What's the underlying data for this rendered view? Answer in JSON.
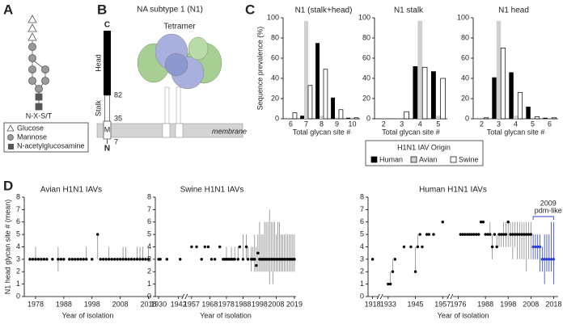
{
  "diagram": {
    "panel_labels": [
      "A",
      "B",
      "C",
      "D"
    ],
    "glycan": {
      "motif": "N-X-S/T",
      "legend": [
        "Glucose",
        "Mannose",
        "N-acetylglucosamine"
      ]
    },
    "protein": {
      "title": "NA subtype 1 (N1)",
      "c_term": "C",
      "head": "Head",
      "pos_82": "82",
      "stalk": "Stalk",
      "pos_35": "35",
      "tm": "M",
      "pos_7": "7",
      "n_term": "N",
      "tetramer": "Tetramer",
      "membrane": "membrane"
    }
  },
  "chart_data": [
    {
      "type": "bar",
      "title": "N1 (stalk+head)",
      "y_label": "Sequence prevalence (%)",
      "x_label": "Total glycan site #",
      "legend_title": "H1N1 IAV Origin",
      "categories": [
        6,
        7,
        8,
        9,
        10
      ],
      "ylim": [
        0,
        100
      ],
      "yticks": [
        0,
        20,
        40,
        60,
        80,
        100
      ],
      "series": [
        {
          "name": "Human",
          "color": "#000000",
          "values": [
            0,
            3,
            75,
            21,
            1
          ]
        },
        {
          "name": "Avian",
          "color": "#d0d0d0",
          "values": [
            0,
            97,
            3,
            0,
            0
          ]
        },
        {
          "name": "Swine",
          "color": "#ffffff",
          "edgecolor": "#000000",
          "values": [
            6,
            33,
            49,
            9,
            1
          ]
        }
      ]
    },
    {
      "type": "bar",
      "title": "N1 stalk",
      "x_label": "Total glycan site #",
      "categories": [
        2,
        3,
        4,
        5
      ],
      "ylim": [
        0,
        100
      ],
      "yticks": [
        0,
        20,
        40,
        60,
        80,
        100
      ],
      "series": [
        {
          "color": "#000000",
          "values": [
            0,
            0,
            52,
            47
          ]
        },
        {
          "color": "#d0d0d0",
          "values": [
            0,
            0,
            97,
            3
          ]
        },
        {
          "color": "#ffffff",
          "edgecolor": "#000000",
          "values": [
            0,
            7,
            51,
            40
          ]
        }
      ]
    },
    {
      "type": "bar",
      "title": "N1 head",
      "x_label": "Total glycan site #",
      "categories": [
        2,
        3,
        4,
        5,
        6
      ],
      "ylim": [
        0,
        100
      ],
      "yticks": [
        0,
        20,
        40,
        60,
        80,
        100
      ],
      "series": [
        {
          "color": "#000000",
          "values": [
            0,
            41,
            46,
            12,
            1
          ]
        },
        {
          "color": "#d0d0d0",
          "values": [
            0,
            97,
            3,
            0,
            0
          ]
        },
        {
          "color": "#ffffff",
          "edgecolor": "#000000",
          "values": [
            1,
            70,
            26,
            2,
            1
          ]
        }
      ]
    },
    {
      "type": "dotrange",
      "title": "Avian H1N1 IAVs",
      "y_label": "N1 head glycan site # (mean)",
      "x_label": "Year of isolation",
      "xlim": [
        1974,
        2019
      ],
      "xticks": [
        1978,
        1988,
        1998,
        2008,
        2018
      ],
      "ylim": [
        0,
        8
      ],
      "yticks": [
        0,
        1,
        2,
        3,
        4,
        5,
        6,
        7,
        8
      ],
      "series": [
        {
          "color": "#000000",
          "x": [
            1976,
            1977,
            1978,
            1979,
            1980,
            1981,
            1982,
            1984,
            1986,
            1987,
            1988,
            1990,
            1991,
            1992,
            1993,
            1994,
            1995,
            1996,
            1998,
            2000,
            2001,
            2002,
            2003,
            2004,
            2005,
            2006,
            2007,
            2008,
            2009,
            2010,
            2011,
            2012,
            2013,
            2014,
            2015,
            2016,
            2017,
            2018
          ],
          "values": [
            3,
            3,
            3,
            3,
            3,
            3,
            3,
            3,
            3,
            3,
            3,
            3,
            3,
            3,
            3,
            3,
            3,
            3,
            3,
            5,
            3,
            3,
            3,
            3,
            3,
            3,
            3,
            3,
            3,
            3,
            3,
            3,
            3,
            3,
            3,
            3,
            3,
            3
          ],
          "lo": [
            3,
            3,
            3,
            3,
            3,
            3,
            3,
            3,
            2,
            3,
            3,
            3,
            3,
            3,
            3,
            3,
            3,
            3,
            3,
            3,
            3,
            3,
            3,
            3,
            3,
            3,
            3,
            3,
            3,
            3,
            3,
            3,
            3,
            3,
            3,
            3,
            3,
            3
          ],
          "hi": [
            3,
            3,
            4,
            3,
            3,
            3,
            3,
            3,
            4,
            3,
            3,
            3,
            3,
            3,
            3,
            3,
            3,
            4,
            3,
            5,
            3,
            3,
            3,
            4,
            3,
            3,
            3,
            3,
            4,
            4,
            3,
            3,
            3,
            4,
            4,
            4,
            3,
            4
          ]
        }
      ]
    },
    {
      "type": "dotrange",
      "title": "Swine H1N1 IAVs",
      "x_label": "Year of isolation",
      "xlim": [
        1928,
        2020
      ],
      "xbreaks": [
        [
          1944,
          1955
        ]
      ],
      "xticks": [
        1930,
        1942,
        1957,
        1968,
        1978,
        1988,
        1998,
        2008,
        2019
      ],
      "ylim": [
        0,
        8
      ],
      "yticks": [
        0,
        1,
        2,
        3,
        4,
        5,
        6,
        7,
        8
      ],
      "series": [
        {
          "color": "#000000",
          "x": [
            1930,
            1931,
            1935,
            1943,
            1957,
            1960,
            1963,
            1965,
            1967,
            1969,
            1971,
            1974,
            1976,
            1977,
            1978,
            1979,
            1980,
            1981,
            1982,
            1983,
            1985,
            1986,
            1988,
            1990,
            1991,
            1993,
            1994,
            1995,
            1996,
            1997,
            1998,
            1999,
            2000,
            2001,
            2002,
            2003,
            2004,
            2005,
            2006,
            2007,
            2008,
            2009,
            2010,
            2011,
            2012,
            2013,
            2014,
            2015,
            2016,
            2017,
            2018,
            2019
          ],
          "values": [
            3,
            3,
            3,
            3,
            4,
            4,
            3,
            4,
            4,
            3,
            3,
            4,
            3,
            3,
            3,
            3,
            3,
            3,
            3,
            3,
            3,
            4,
            3,
            4,
            3,
            3,
            3,
            3,
            2.5,
            3.5,
            3,
            3,
            3,
            3,
            3,
            3,
            3,
            3,
            3,
            3,
            3,
            3,
            3,
            3,
            3,
            3,
            3,
            3,
            3,
            3,
            3,
            3
          ],
          "lo": [
            3,
            3,
            3,
            3,
            4,
            4,
            3,
            4,
            4,
            3,
            3,
            4,
            3,
            3,
            3,
            3,
            3,
            3,
            3,
            3,
            3,
            4,
            3,
            3,
            3,
            2,
            3,
            2,
            2,
            2,
            2,
            2,
            2,
            2,
            2,
            2,
            1,
            2,
            1,
            2,
            2,
            2,
            2,
            2,
            2,
            2,
            2,
            2,
            2,
            2,
            2,
            2
          ],
          "hi": [
            3,
            3,
            3,
            3,
            4,
            4,
            3,
            4,
            4,
            3,
            3,
            4,
            3,
            3,
            4,
            3,
            3,
            4,
            3,
            4,
            4,
            4,
            5,
            5,
            4,
            4,
            4,
            5,
            4,
            5,
            6,
            5,
            5,
            6,
            6,
            6,
            7,
            6,
            6,
            6,
            5,
            6,
            6,
            5,
            5,
            5,
            5,
            5,
            5,
            5,
            5,
            5
          ]
        }
      ]
    },
    {
      "type": "dotrange",
      "title": "Human H1N1 IAVs",
      "x_label": "Year of isolation",
      "annotation": [
        "2009",
        "pdm-like"
      ],
      "xlim": [
        1916,
        2020
      ],
      "xbreaks": [
        [
          1920,
          1931
        ],
        [
          1959,
          1974
        ]
      ],
      "xticks": [
        1918,
        1933,
        1945,
        1957,
        1976,
        1988,
        1998,
        2008,
        2018
      ],
      "ylim": [
        0,
        8
      ],
      "yticks": [
        0,
        1,
        2,
        3,
        4,
        5,
        6,
        7,
        8
      ],
      "series": [
        {
          "color": "#000000",
          "x": [
            1918,
            1933,
            1934,
            1935,
            1936,
            1940,
            1943,
            1945,
            1946,
            1947,
            1948,
            1950,
            1951,
            1953,
            1957,
            1977,
            1978,
            1979,
            1980,
            1981,
            1982,
            1983,
            1984,
            1985,
            1986,
            1987,
            1988,
            1989,
            1990,
            1991,
            1992,
            1993,
            1994,
            1995,
            1996,
            1997,
            1998,
            1999,
            2000,
            2001,
            2002,
            2003,
            2004,
            2005,
            2006,
            2007,
            2008
          ],
          "values": [
            3,
            1,
            1,
            2,
            3,
            4,
            4,
            2,
            4,
            5,
            4,
            5,
            5,
            5,
            6,
            5,
            5,
            5,
            5,
            5,
            5,
            5,
            5,
            5,
            6,
            6,
            5,
            5,
            5,
            4,
            5,
            4,
            5,
            5,
            5,
            5,
            6,
            5,
            5,
            5,
            5,
            5,
            5,
            5,
            5,
            5,
            5
          ],
          "lo": [
            3,
            1,
            1,
            2,
            3,
            4,
            4,
            2,
            4,
            5,
            4,
            5,
            5,
            5,
            6,
            5,
            5,
            5,
            5,
            5,
            5,
            5,
            5,
            5,
            6,
            6,
            5,
            5,
            5,
            3,
            5,
            4,
            4,
            4,
            4,
            4,
            4,
            4,
            3,
            4,
            3,
            3,
            3,
            3,
            2,
            3,
            3
          ],
          "hi": [
            3,
            1,
            2,
            3,
            3,
            4,
            4,
            4,
            5,
            5,
            4,
            5,
            5,
            5,
            6,
            5,
            5,
            5,
            5,
            5,
            5,
            5,
            5,
            5,
            6,
            6,
            5,
            5,
            6,
            5,
            5,
            5,
            5,
            5,
            6,
            6,
            6,
            6,
            6,
            6,
            6,
            6,
            6,
            6,
            6,
            6,
            6
          ]
        },
        {
          "color": "#2b3fd6",
          "x": [
            2009,
            2010,
            2011,
            2012,
            2013,
            2014,
            2015,
            2016,
            2017,
            2018
          ],
          "values": [
            4,
            4,
            4,
            4,
            3,
            3,
            3,
            3,
            3,
            3
          ],
          "lo": [
            3,
            3,
            3,
            2,
            2,
            1,
            2,
            2,
            2,
            1
          ],
          "hi": [
            5,
            5,
            5,
            5,
            4,
            5,
            5,
            5,
            6,
            6
          ]
        }
      ]
    }
  ]
}
